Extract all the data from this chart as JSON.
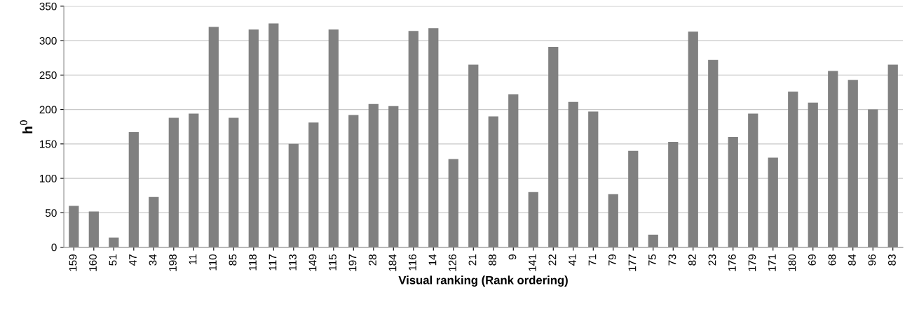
{
  "chart_data": {
    "type": "bar",
    "xlabel": "Visual ranking (Rank ordering)",
    "ylabel": "h$^{0}$",
    "categories": [
      "159",
      "160",
      "51",
      "47",
      "34",
      "198",
      "11",
      "110",
      "85",
      "118",
      "117",
      "113",
      "149",
      "115",
      "197",
      "28",
      "184",
      "116",
      "14",
      "126",
      "21",
      "88",
      "9",
      "141",
      "22",
      "41",
      "71",
      "79",
      "177",
      "75",
      "73",
      "82",
      "23",
      "176",
      "179",
      "171",
      "180",
      "69",
      "68",
      "84",
      "96",
      "83"
    ],
    "values": [
      60,
      52,
      14,
      167,
      73,
      188,
      194,
      320,
      188,
      316,
      325,
      150,
      181,
      316,
      192,
      208,
      205,
      314,
      318,
      128,
      265,
      190,
      222,
      80,
      291,
      211,
      197,
      77,
      140,
      18,
      153,
      313,
      272,
      160,
      194,
      130,
      226,
      210,
      256,
      243,
      200,
      265
    ],
    "color": "#808080",
    "ylim": [
      0,
      350
    ],
    "yticks": [
      0,
      50,
      100,
      150,
      200,
      250,
      300,
      350
    ],
    "grid": "y"
  }
}
